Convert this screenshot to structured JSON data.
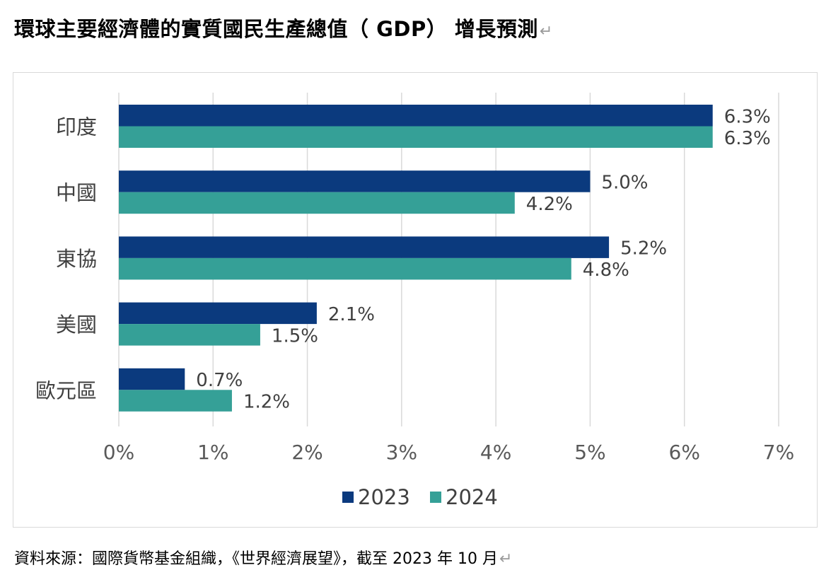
{
  "title": "環球主要經濟體的實質國民生產總值（ GDP） 增長預測",
  "paragraph_mark": "↵",
  "source": "資料來源：國際貨幣基金組織，《世界經濟展望》，截至 2023 年 10 月",
  "chart_data": {
    "type": "bar",
    "orientation": "horizontal",
    "title": "",
    "xlabel": "",
    "ylabel": "",
    "categories": [
      "印度",
      "中國",
      "東協",
      "美國",
      "歐元區"
    ],
    "series": [
      {
        "name": "2023",
        "color": "#0b3a7e",
        "values": [
          6.3,
          5.0,
          5.2,
          2.1,
          0.7
        ],
        "labels": [
          "6.3%",
          "5.0%",
          "5.2%",
          "2.1%",
          "0.7%"
        ]
      },
      {
        "name": "2024",
        "color": "#35a097",
        "values": [
          6.3,
          4.2,
          4.8,
          1.5,
          1.2
        ],
        "labels": [
          "6.3%",
          "4.2%",
          "4.8%",
          "1.5%",
          "1.2%"
        ]
      }
    ],
    "xlim": [
      0,
      7
    ],
    "x_ticks": [
      "0%",
      "1%",
      "2%",
      "3%",
      "4%",
      "5%",
      "6%",
      "7%"
    ],
    "grid": "vertical",
    "legend": "bottom-center"
  }
}
